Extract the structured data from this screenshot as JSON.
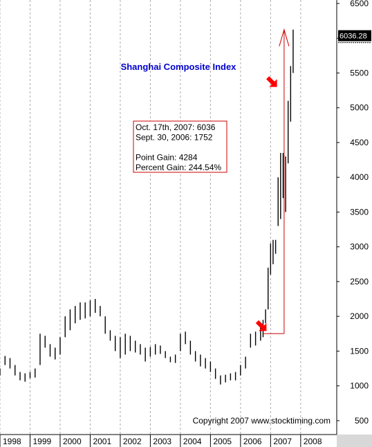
{
  "chart_data": {
    "type": "bar",
    "title": "Shanghai Composite Index",
    "y_axis": {
      "ticks": [
        500,
        1000,
        1500,
        2000,
        2500,
        3000,
        3500,
        4000,
        4500,
        5000,
        5500,
        6000,
        6500
      ],
      "range": [
        300,
        6550
      ],
      "position": "right"
    },
    "x_axis": {
      "labels": [
        "1998",
        "1999",
        "2000",
        "2001",
        "2002",
        "2003",
        "2004",
        "2005",
        "2006",
        "2007",
        "2008"
      ],
      "range": [
        1998.0,
        2009.2
      ]
    },
    "grid": true,
    "last_value_label": "6036.28",
    "last_value": 6036.28,
    "annotation": {
      "lines": [
        "Oct. 17th, 2007:  6036",
        "Sept. 30, 2006: 1752",
        "",
        "Point Gain:     4284",
        "Percent Gain:  244.54%"
      ]
    },
    "copyright": "Copyright 2007 www.stocktiming.com",
    "series": [
      {
        "bar_type": "ohlc",
        "x": [
          1998.0,
          1998.167,
          1998.333,
          1998.5,
          1998.667,
          1998.833,
          1999.0,
          1999.167,
          1999.333,
          1999.5,
          1999.667,
          1999.833,
          2000.0,
          2000.167,
          2000.333,
          2000.5,
          2000.667,
          2000.833,
          2001.0,
          2001.167,
          2001.333,
          2001.5,
          2001.667,
          2001.833,
          2002.0,
          2002.167,
          2002.333,
          2002.5,
          2002.667,
          2002.833,
          2003.0,
          2003.167,
          2003.333,
          2003.5,
          2003.667,
          2003.833,
          2004.0,
          2004.167,
          2004.333,
          2004.5,
          2004.667,
          2004.833,
          2005.0,
          2005.167,
          2005.333,
          2005.5,
          2005.667,
          2005.833,
          2006.0,
          2006.167,
          2006.333,
          2006.5,
          2006.667,
          2006.75,
          2006.833,
          2006.917,
          2007.0,
          2007.083,
          2007.167,
          2007.25,
          2007.333,
          2007.417,
          2007.5,
          2007.583,
          2007.667,
          2007.75
        ],
        "low": [
          1150,
          1300,
          1250,
          1150,
          1080,
          1060,
          1110,
          1120,
          1300,
          1550,
          1420,
          1380,
          1450,
          1700,
          1800,
          1900,
          1950,
          1970,
          2000,
          2050,
          2000,
          1750,
          1650,
          1500,
          1400,
          1450,
          1500,
          1480,
          1450,
          1350,
          1420,
          1450,
          1460,
          1400,
          1340,
          1330,
          1500,
          1600,
          1450,
          1350,
          1280,
          1250,
          1200,
          1100,
          1020,
          1050,
          1080,
          1080,
          1150,
          1250,
          1550,
          1580,
          1650,
          1700,
          1900,
          2100,
          2600,
          2750,
          2900,
          3300,
          3400,
          3700,
          3500,
          4200,
          4800,
          5500
        ],
        "high": [
          1250,
          1430,
          1400,
          1300,
          1200,
          1180,
          1200,
          1250,
          1750,
          1720,
          1600,
          1550,
          1700,
          2000,
          2100,
          2150,
          2200,
          2200,
          2230,
          2250,
          2150,
          2000,
          1800,
          1720,
          1700,
          1750,
          1720,
          1650,
          1600,
          1550,
          1560,
          1600,
          1580,
          1500,
          1420,
          1450,
          1750,
          1780,
          1650,
          1500,
          1450,
          1400,
          1350,
          1250,
          1150,
          1160,
          1180,
          1200,
          1300,
          1420,
          1750,
          1780,
          1850,
          1950,
          2100,
          2700,
          3050,
          3100,
          3100,
          4000,
          4350,
          4350,
          4300,
          5100,
          5600,
          6124
        ]
      }
    ],
    "reference_lines": [
      {
        "from": {
          "x": 2006.75,
          "y": 1752
        },
        "to": {
          "x": 2007.45,
          "y": 1752
        }
      },
      {
        "from": {
          "x": 2007.45,
          "y": 1752
        },
        "to": {
          "x": 2007.45,
          "y": 6124
        }
      }
    ],
    "arrows": [
      {
        "x": 2006.7,
        "y": 1860,
        "color": "#ff0000"
      },
      {
        "x": 2007.05,
        "y": 5370,
        "color": "#ff0000"
      }
    ],
    "colors": {
      "accent": "#cc0000",
      "bars": "#000000",
      "title": "#0000cc",
      "grid": "#aaaaaa",
      "marker": "#ff0000"
    }
  }
}
